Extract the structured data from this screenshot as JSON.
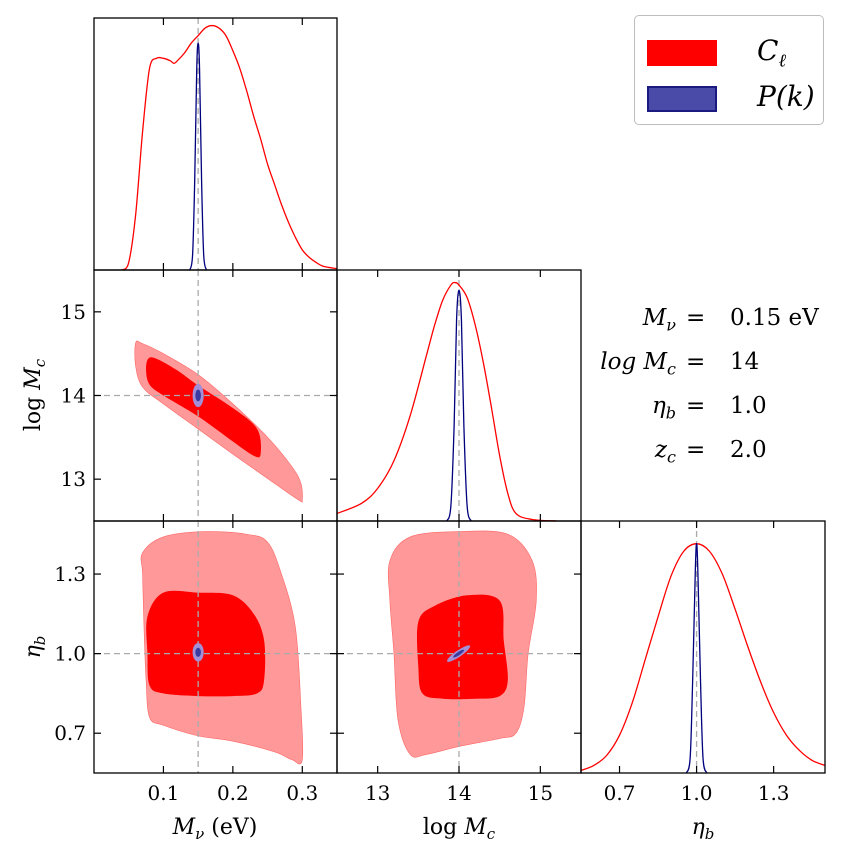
{
  "chart_data": {
    "type": "corner",
    "parameters": [
      {
        "key": "Mnu",
        "label": "M_ν (eV)",
        "lim": [
          0.0,
          0.35
        ],
        "ticks": [
          0.1,
          0.2,
          0.3
        ],
        "tick_labels": [
          "0.1",
          "0.2",
          "0.3"
        ],
        "fiducial": 0.15
      },
      {
        "key": "logMc",
        "label": "log M_c",
        "lim": [
          12.5,
          15.5
        ],
        "ticks": [
          13,
          14,
          15
        ],
        "tick_labels": [
          "13",
          "14",
          "15"
        ],
        "fiducial": 14.0
      },
      {
        "key": "eta_b",
        "label": "η_b",
        "lim": [
          0.55,
          1.5
        ],
        "ticks": [
          0.7,
          1.0,
          1.3
        ],
        "tick_labels": [
          "0.7",
          "1.0",
          "1.3"
        ],
        "fiducial": 1.0
      }
    ],
    "series": [
      {
        "name": "C_ℓ",
        "color": "#ff0000",
        "fill_inner": "#ff0000",
        "fill_outer": "#ff9999"
      },
      {
        "name": "P(k)",
        "color": "#00007f",
        "fill_inner": "#3a3aa0",
        "fill_outer": "#a38fd6"
      }
    ],
    "marginals": {
      "Mnu": {
        "C_l": [
          [
            0.04,
            0.0
          ],
          [
            0.05,
            0.03
          ],
          [
            0.06,
            0.22
          ],
          [
            0.07,
            0.55
          ],
          [
            0.08,
            0.8
          ],
          [
            0.09,
            0.84
          ],
          [
            0.1,
            0.84
          ],
          [
            0.11,
            0.83
          ],
          [
            0.115,
            0.82
          ],
          [
            0.12,
            0.83
          ],
          [
            0.13,
            0.86
          ],
          [
            0.14,
            0.9
          ],
          [
            0.15,
            0.93
          ],
          [
            0.16,
            0.96
          ],
          [
            0.17,
            0.97
          ],
          [
            0.18,
            0.96
          ],
          [
            0.19,
            0.93
          ],
          [
            0.2,
            0.87
          ],
          [
            0.21,
            0.8
          ],
          [
            0.22,
            0.71
          ],
          [
            0.23,
            0.61
          ],
          [
            0.24,
            0.52
          ],
          [
            0.25,
            0.42
          ],
          [
            0.26,
            0.34
          ],
          [
            0.27,
            0.26
          ],
          [
            0.28,
            0.19
          ],
          [
            0.29,
            0.13
          ],
          [
            0.3,
            0.08
          ],
          [
            0.31,
            0.05
          ],
          [
            0.32,
            0.03
          ],
          [
            0.33,
            0.015
          ],
          [
            0.35,
            0.005
          ]
        ],
        "P_k": [
          [
            0.138,
            0.0
          ],
          [
            0.142,
            0.06
          ],
          [
            0.145,
            0.35
          ],
          [
            0.148,
            0.8
          ],
          [
            0.15,
            0.9
          ],
          [
            0.152,
            0.8
          ],
          [
            0.155,
            0.35
          ],
          [
            0.158,
            0.06
          ],
          [
            0.162,
            0.0
          ]
        ]
      },
      "logMc": {
        "C_l": [
          [
            12.5,
            0.03
          ],
          [
            12.8,
            0.07
          ],
          [
            13.0,
            0.13
          ],
          [
            13.2,
            0.24
          ],
          [
            13.4,
            0.42
          ],
          [
            13.6,
            0.66
          ],
          [
            13.7,
            0.78
          ],
          [
            13.8,
            0.88
          ],
          [
            13.9,
            0.94
          ],
          [
            13.95,
            0.95
          ],
          [
            14.0,
            0.94
          ],
          [
            14.1,
            0.89
          ],
          [
            14.2,
            0.78
          ],
          [
            14.3,
            0.63
          ],
          [
            14.4,
            0.45
          ],
          [
            14.5,
            0.26
          ],
          [
            14.6,
            0.11
          ],
          [
            14.7,
            0.03
          ],
          [
            14.9,
            0.006
          ],
          [
            15.2,
            0.0
          ]
        ],
        "P_k": [
          [
            13.85,
            0.0
          ],
          [
            13.9,
            0.06
          ],
          [
            13.94,
            0.38
          ],
          [
            13.97,
            0.8
          ],
          [
            14.0,
            0.92
          ],
          [
            14.03,
            0.8
          ],
          [
            14.06,
            0.38
          ],
          [
            14.1,
            0.06
          ],
          [
            14.15,
            0.0
          ]
        ]
      },
      "eta_b": {
        "C_l": [
          [
            0.55,
            0.01
          ],
          [
            0.6,
            0.03
          ],
          [
            0.65,
            0.07
          ],
          [
            0.7,
            0.15
          ],
          [
            0.75,
            0.28
          ],
          [
            0.8,
            0.45
          ],
          [
            0.85,
            0.62
          ],
          [
            0.9,
            0.78
          ],
          [
            0.95,
            0.88
          ],
          [
            1.0,
            0.91
          ],
          [
            1.05,
            0.88
          ],
          [
            1.1,
            0.79
          ],
          [
            1.15,
            0.65
          ],
          [
            1.2,
            0.5
          ],
          [
            1.25,
            0.36
          ],
          [
            1.3,
            0.24
          ],
          [
            1.35,
            0.15
          ],
          [
            1.4,
            0.09
          ],
          [
            1.45,
            0.05
          ],
          [
            1.5,
            0.03
          ]
        ],
        "P_k": [
          [
            0.96,
            0.0
          ],
          [
            0.975,
            0.06
          ],
          [
            0.985,
            0.38
          ],
          [
            0.995,
            0.8
          ],
          [
            1.0,
            0.91
          ],
          [
            1.005,
            0.8
          ],
          [
            1.015,
            0.38
          ],
          [
            1.025,
            0.06
          ],
          [
            1.04,
            0.0
          ]
        ]
      }
    },
    "contours": {
      "logMc_vs_Mnu": {
        "C_l_outer": [
          [
            0.06,
            14.63
          ],
          [
            0.07,
            14.62
          ],
          [
            0.1,
            14.5
          ],
          [
            0.15,
            14.25
          ],
          [
            0.2,
            13.9
          ],
          [
            0.25,
            13.5
          ],
          [
            0.285,
            13.15
          ],
          [
            0.298,
            12.95
          ],
          [
            0.3,
            12.75
          ],
          [
            0.295,
            12.75
          ],
          [
            0.26,
            12.95
          ],
          [
            0.2,
            13.3
          ],
          [
            0.15,
            13.6
          ],
          [
            0.1,
            13.9
          ],
          [
            0.07,
            14.1
          ],
          [
            0.06,
            14.35
          ]
        ],
        "C_l_inner": [
          [
            0.078,
            14.44
          ],
          [
            0.09,
            14.44
          ],
          [
            0.12,
            14.3
          ],
          [
            0.15,
            14.12
          ],
          [
            0.2,
            13.85
          ],
          [
            0.235,
            13.6
          ],
          [
            0.24,
            13.3
          ],
          [
            0.23,
            13.28
          ],
          [
            0.2,
            13.45
          ],
          [
            0.15,
            13.75
          ],
          [
            0.1,
            14.0
          ],
          [
            0.08,
            14.13
          ],
          [
            0.075,
            14.3
          ]
        ],
        "P_k_outer": {
          "cx": 0.15,
          "cy": 14.0,
          "rx": 0.008,
          "ry": 0.14,
          "rot": 0
        },
        "P_k_inner": {
          "cx": 0.15,
          "cy": 14.0,
          "rx": 0.004,
          "ry": 0.07,
          "rot": 0
        }
      },
      "eta_b_vs_Mnu": {
        "C_l_outer": [
          [
            0.07,
            1.38
          ],
          [
            0.1,
            1.44
          ],
          [
            0.16,
            1.46
          ],
          [
            0.22,
            1.45
          ],
          [
            0.25,
            1.42
          ],
          [
            0.27,
            1.3
          ],
          [
            0.29,
            1.1
          ],
          [
            0.298,
            0.8
          ],
          [
            0.3,
            0.6
          ],
          [
            0.285,
            0.6
          ],
          [
            0.26,
            0.63
          ],
          [
            0.2,
            0.67
          ],
          [
            0.15,
            0.69
          ],
          [
            0.1,
            0.73
          ],
          [
            0.08,
            0.76
          ],
          [
            0.075,
            0.9
          ],
          [
            0.072,
            1.1
          ],
          [
            0.07,
            1.3
          ]
        ],
        "C_l_inner": [
          [
            0.077,
            1.14
          ],
          [
            0.1,
            1.23
          ],
          [
            0.15,
            1.23
          ],
          [
            0.2,
            1.22
          ],
          [
            0.23,
            1.15
          ],
          [
            0.245,
            1.05
          ],
          [
            0.245,
            0.9
          ],
          [
            0.235,
            0.85
          ],
          [
            0.2,
            0.84
          ],
          [
            0.15,
            0.84
          ],
          [
            0.1,
            0.85
          ],
          [
            0.08,
            0.88
          ],
          [
            0.077,
            1.0
          ]
        ],
        "P_k_outer": {
          "cx": 0.15,
          "cy": 1.005,
          "rx": 0.008,
          "ry": 0.035,
          "rot": 0
        },
        "P_k_inner": {
          "cx": 0.15,
          "cy": 1.005,
          "rx": 0.004,
          "ry": 0.017,
          "rot": 0
        }
      },
      "eta_b_vs_logMc": {
        "C_l_outer": [
          [
            13.15,
            1.35
          ],
          [
            13.4,
            1.44
          ],
          [
            14.0,
            1.46
          ],
          [
            14.6,
            1.45
          ],
          [
            14.9,
            1.35
          ],
          [
            14.95,
            1.2
          ],
          [
            14.85,
            1.0
          ],
          [
            14.8,
            0.8
          ],
          [
            14.7,
            0.7
          ],
          [
            14.5,
            0.68
          ],
          [
            14.0,
            0.65
          ],
          [
            13.6,
            0.62
          ],
          [
            13.4,
            0.62
          ],
          [
            13.25,
            0.75
          ],
          [
            13.2,
            1.0
          ],
          [
            13.15,
            1.2
          ]
        ],
        "C_l_inner": [
          [
            13.5,
            1.12
          ],
          [
            13.7,
            1.18
          ],
          [
            14.1,
            1.22
          ],
          [
            14.5,
            1.2
          ],
          [
            14.55,
            1.05
          ],
          [
            14.6,
            0.9
          ],
          [
            14.5,
            0.84
          ],
          [
            14.2,
            0.83
          ],
          [
            13.8,
            0.83
          ],
          [
            13.55,
            0.85
          ],
          [
            13.5,
            0.95
          ]
        ],
        "P_k_outer": {
          "cx": 13.995,
          "cy": 1.0,
          "rx": 0.17,
          "ry": 0.012,
          "rot": -0.6
        },
        "P_k_inner": {
          "cx": 13.995,
          "cy": 1.0,
          "rx": 0.08,
          "ry": 0.006,
          "rot": -0.6
        }
      }
    },
    "fiducials_box": [
      {
        "name": "M_ν",
        "eq": "=",
        "value": "0.15 eV"
      },
      {
        "name": "log M_c",
        "eq": "=",
        "value": "14"
      },
      {
        "name": "η_b",
        "eq": "=",
        "value": "1.0"
      },
      {
        "name": "z_c",
        "eq": "=",
        "value": "2.0"
      }
    ],
    "legend": {
      "position": "top-right",
      "entries": [
        "C_ℓ",
        "P(k)"
      ]
    }
  },
  "labels": {
    "x_Mnu_sym": "M",
    "x_Mnu_sub": "ν",
    "x_Mnu_unit": "(eV)",
    "x_logMc_log": "log",
    "x_logMc_sym": "M",
    "x_logMc_sub": "c",
    "x_eta_sym": "η",
    "x_eta_sub": "b"
  },
  "legend_text": {
    "cl_main": "C",
    "cl_sub": "ℓ",
    "pk": "P(k)"
  },
  "fid_text": [
    {
      "name_main": "M",
      "name_sub": "ν",
      "eq": "=",
      "value": "0.15 eV"
    },
    {
      "name_main": "log M",
      "name_sub": "c",
      "eq": "=",
      "value": "14"
    },
    {
      "name_main": "η",
      "name_sub": "b",
      "eq": "=",
      "value": "1.0"
    },
    {
      "name_main": "z",
      "name_sub": "c",
      "eq": "=",
      "value": "2.0"
    }
  ]
}
